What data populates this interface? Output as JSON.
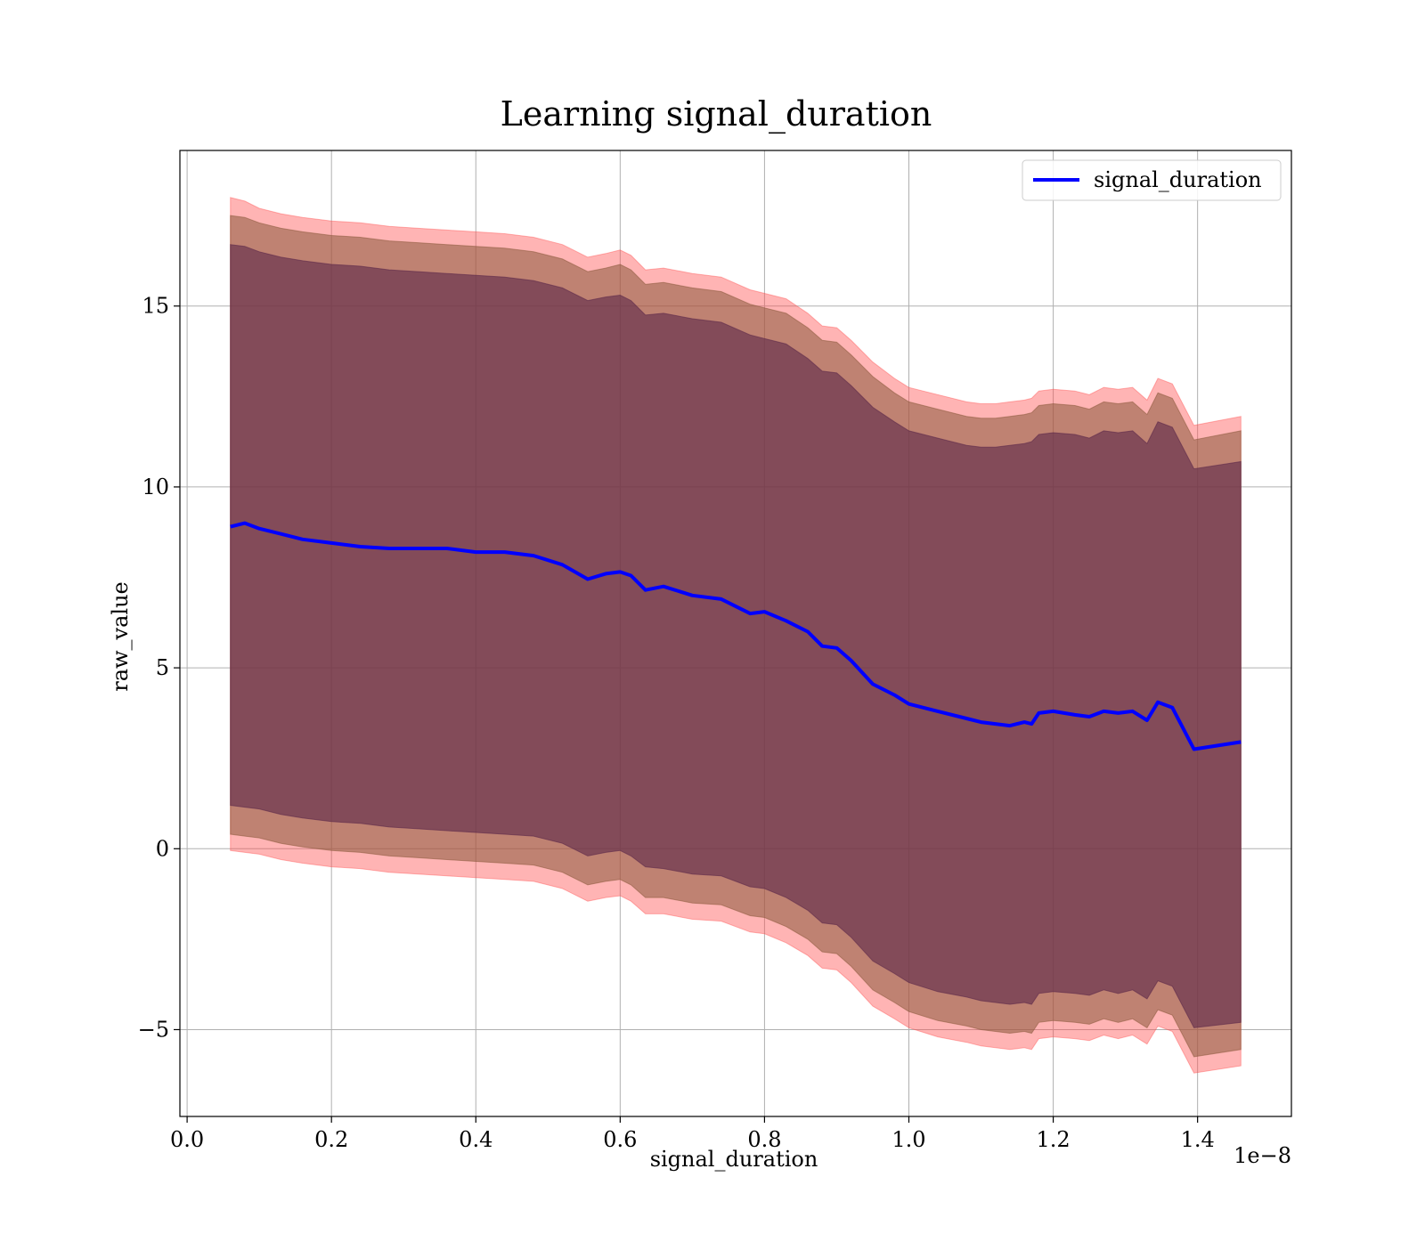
{
  "chart_data": {
    "type": "line",
    "title": "Learning signal_duration",
    "xlabel": "signal_duration",
    "ylabel": "raw_value",
    "x_offset_text": "1e−8",
    "xlim": [
      -0.01,
      1.53
    ],
    "ylim": [
      -7.4,
      19.3
    ],
    "x_ticks": [
      0.0,
      0.2,
      0.4,
      0.6,
      0.8,
      1.0,
      1.2,
      1.4
    ],
    "x_tick_labels": [
      "0.0",
      "0.2",
      "0.4",
      "0.6",
      "0.8",
      "1.0",
      "1.2",
      "1.4"
    ],
    "y_ticks": [
      -5,
      0,
      5,
      10,
      15
    ],
    "y_tick_labels": [
      "−5",
      "0",
      "5",
      "10",
      "15"
    ],
    "grid": true,
    "legend": {
      "position": "top-right",
      "entries": [
        {
          "name": "signal_duration",
          "color": "#0000ff"
        }
      ]
    },
    "x": [
      0.06,
      0.08,
      0.1,
      0.13,
      0.16,
      0.2,
      0.24,
      0.28,
      0.32,
      0.36,
      0.4,
      0.44,
      0.48,
      0.52,
      0.555,
      0.58,
      0.6,
      0.615,
      0.635,
      0.66,
      0.7,
      0.74,
      0.78,
      0.8,
      0.83,
      0.86,
      0.88,
      0.9,
      0.92,
      0.95,
      0.98,
      1.0,
      1.04,
      1.08,
      1.1,
      1.12,
      1.14,
      1.16,
      1.17,
      1.18,
      1.2,
      1.23,
      1.25,
      1.27,
      1.29,
      1.31,
      1.33,
      1.345,
      1.365,
      1.395,
      1.46
    ],
    "series": [
      {
        "name": "signal_duration",
        "color": "#0000ff",
        "values": [
          8.9,
          9.0,
          8.85,
          8.7,
          8.55,
          8.45,
          8.35,
          8.3,
          8.3,
          8.3,
          8.2,
          8.2,
          8.1,
          7.85,
          7.45,
          7.6,
          7.65,
          7.55,
          7.15,
          7.25,
          7.0,
          6.9,
          6.5,
          6.55,
          6.3,
          6.0,
          5.6,
          5.55,
          5.2,
          4.55,
          4.25,
          4.0,
          3.8,
          3.6,
          3.5,
          3.45,
          3.4,
          3.5,
          3.45,
          3.75,
          3.8,
          3.7,
          3.65,
          3.8,
          3.75,
          3.8,
          3.55,
          4.05,
          3.9,
          2.75,
          2.95
        ]
      }
    ],
    "bands": [
      {
        "name": "outer",
        "color": "#ff4d4d",
        "opacity": 0.42,
        "upper": [
          18.0,
          17.9,
          17.7,
          17.55,
          17.45,
          17.35,
          17.3,
          17.2,
          17.15,
          17.1,
          17.05,
          17.0,
          16.9,
          16.7,
          16.35,
          16.45,
          16.55,
          16.4,
          16.0,
          16.05,
          15.9,
          15.8,
          15.45,
          15.35,
          15.2,
          14.8,
          14.45,
          14.4,
          14.05,
          13.45,
          13.0,
          12.75,
          12.55,
          12.35,
          12.3,
          12.3,
          12.35,
          12.4,
          12.45,
          12.65,
          12.7,
          12.65,
          12.55,
          12.75,
          12.7,
          12.75,
          12.4,
          13.0,
          12.85,
          11.7,
          11.95
        ],
        "lower": [
          -0.05,
          -0.1,
          -0.15,
          -0.3,
          -0.4,
          -0.5,
          -0.55,
          -0.65,
          -0.7,
          -0.75,
          -0.8,
          -0.85,
          -0.9,
          -1.1,
          -1.45,
          -1.35,
          -1.3,
          -1.45,
          -1.8,
          -1.8,
          -1.95,
          -2.0,
          -2.3,
          -2.35,
          -2.6,
          -2.95,
          -3.3,
          -3.35,
          -3.7,
          -4.35,
          -4.7,
          -4.95,
          -5.2,
          -5.35,
          -5.45,
          -5.5,
          -5.55,
          -5.5,
          -5.55,
          -5.25,
          -5.2,
          -5.25,
          -5.3,
          -5.15,
          -5.25,
          -5.15,
          -5.4,
          -4.9,
          -5.05,
          -6.2,
          -6.0
        ]
      },
      {
        "name": "middle",
        "color": "#8a5a3c",
        "opacity": 0.55,
        "upper": [
          17.5,
          17.45,
          17.3,
          17.15,
          17.05,
          16.95,
          16.9,
          16.8,
          16.75,
          16.7,
          16.65,
          16.6,
          16.5,
          16.3,
          15.95,
          16.05,
          16.15,
          16.0,
          15.6,
          15.65,
          15.5,
          15.4,
          15.05,
          14.95,
          14.8,
          14.4,
          14.05,
          14.0,
          13.65,
          13.05,
          12.6,
          12.35,
          12.15,
          11.95,
          11.9,
          11.9,
          11.95,
          12.0,
          12.05,
          12.25,
          12.3,
          12.25,
          12.15,
          12.35,
          12.3,
          12.35,
          12.0,
          12.6,
          12.45,
          11.3,
          11.55
        ],
        "lower": [
          0.4,
          0.35,
          0.3,
          0.15,
          0.05,
          -0.05,
          -0.1,
          -0.2,
          -0.25,
          -0.3,
          -0.35,
          -0.4,
          -0.45,
          -0.65,
          -1.0,
          -0.9,
          -0.85,
          -1.0,
          -1.35,
          -1.35,
          -1.5,
          -1.55,
          -1.85,
          -1.9,
          -2.15,
          -2.5,
          -2.85,
          -2.9,
          -3.25,
          -3.9,
          -4.25,
          -4.5,
          -4.75,
          -4.9,
          -5.0,
          -5.05,
          -5.1,
          -5.05,
          -5.1,
          -4.8,
          -4.75,
          -4.8,
          -4.85,
          -4.7,
          -4.8,
          -4.7,
          -4.95,
          -4.45,
          -4.6,
          -5.75,
          -5.55
        ]
      },
      {
        "name": "inner",
        "color": "#5e2a4a",
        "opacity": 0.62,
        "upper": [
          16.7,
          16.65,
          16.5,
          16.35,
          16.25,
          16.15,
          16.1,
          16.0,
          15.95,
          15.9,
          15.85,
          15.8,
          15.7,
          15.5,
          15.15,
          15.25,
          15.3,
          15.15,
          14.75,
          14.8,
          14.65,
          14.55,
          14.2,
          14.1,
          13.95,
          13.55,
          13.2,
          13.15,
          12.8,
          12.2,
          11.8,
          11.55,
          11.35,
          11.15,
          11.1,
          11.1,
          11.15,
          11.2,
          11.25,
          11.45,
          11.5,
          11.45,
          11.35,
          11.55,
          11.5,
          11.55,
          11.2,
          11.8,
          11.65,
          10.5,
          10.7
        ],
        "lower": [
          1.2,
          1.15,
          1.1,
          0.95,
          0.85,
          0.75,
          0.7,
          0.6,
          0.55,
          0.5,
          0.45,
          0.4,
          0.35,
          0.15,
          -0.2,
          -0.1,
          -0.05,
          -0.2,
          -0.5,
          -0.55,
          -0.7,
          -0.75,
          -1.05,
          -1.1,
          -1.35,
          -1.7,
          -2.05,
          -2.1,
          -2.45,
          -3.1,
          -3.45,
          -3.7,
          -3.95,
          -4.1,
          -4.2,
          -4.25,
          -4.3,
          -4.25,
          -4.3,
          -4.0,
          -3.95,
          -4.0,
          -4.05,
          -3.9,
          -4.0,
          -3.9,
          -4.15,
          -3.65,
          -3.8,
          -4.95,
          -4.8
        ]
      }
    ]
  }
}
